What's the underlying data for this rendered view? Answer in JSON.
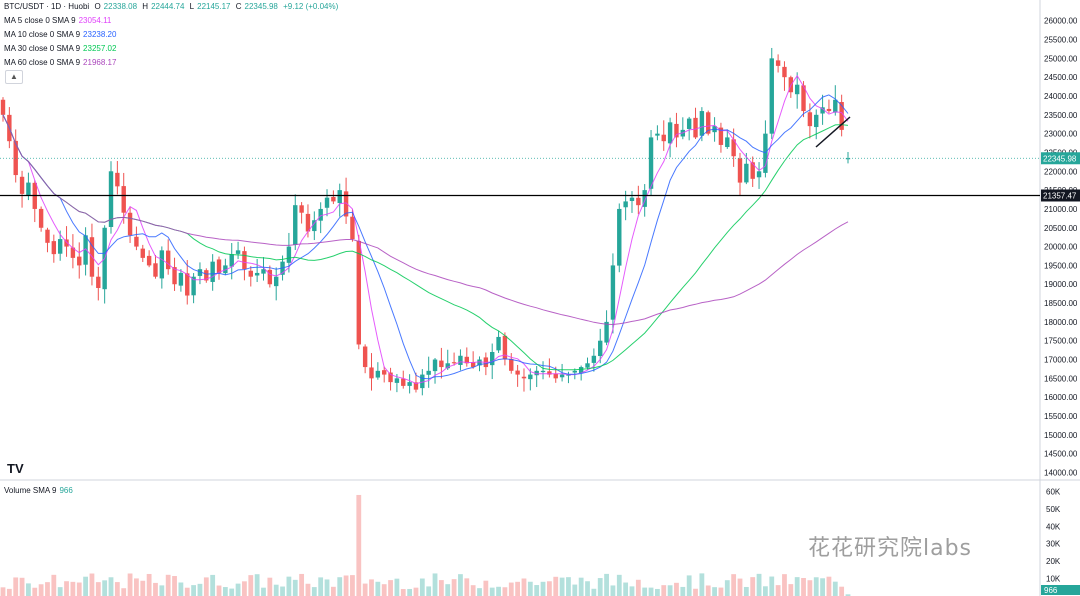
{
  "header": {
    "symbol": "BTC/USDT · 1D · Huobi",
    "ohlc": {
      "o_label": "O",
      "o": "22338.08",
      "h_label": "H",
      "h": "22444.74",
      "l_label": "L",
      "l": "22145.17",
      "c_label": "C",
      "c": "22345.98",
      "change": "+9.12 (+0.04%)"
    }
  },
  "indicators": [
    {
      "label": "MA 5 close 0 SMA 9",
      "value": "23054.11",
      "color": "#e040fb"
    },
    {
      "label": "MA 10 close 0 SMA 9",
      "value": "23238.20",
      "color": "#2962ff"
    },
    {
      "label": "MA 30 close 0 SMA 9",
      "value": "23257.02",
      "color": "#00c853"
    },
    {
      "label": "MA 60 close 0 SMA 9",
      "value": "21968.17",
      "color": "#ab47bc"
    }
  ],
  "volume": {
    "label": "Volume SMA 9",
    "value": "966"
  },
  "collapse_icon": "chevron-up-icon",
  "watermark": "花花研究院labs",
  "logo": "TV",
  "colors": {
    "up": "#26a69a",
    "down": "#ef5350",
    "ma5": "#e040fb",
    "ma10": "#2962ff",
    "ma30": "#00c853",
    "ma60": "#ab47bc",
    "hline": "#000000"
  },
  "chart_data": {
    "type": "candlestick",
    "price_axis_ticks": [
      "26000.00",
      "25500.00",
      "25000.00",
      "24500.00",
      "24000.00",
      "23500.00",
      "23000.00",
      "22500.00",
      "22000.00",
      "21500.00",
      "21000.00",
      "20500.00",
      "20000.00",
      "19500.00",
      "19000.00",
      "18500.00",
      "18000.00",
      "17500.00",
      "17000.00",
      "16500.00",
      "16000.00",
      "15500.00",
      "15000.00",
      "14500.00",
      "14000.00"
    ],
    "volume_axis_ticks": [
      "60K",
      "50K",
      "40K",
      "30K",
      "20K",
      "10K"
    ],
    "last_price": "22345.98",
    "horizontal_line_price": "21357.47",
    "volume_last": "966",
    "ylim": [
      14000,
      26000
    ],
    "closes": [
      23500,
      22800,
      21900,
      21400,
      21700,
      21000,
      20500,
      20100,
      19800,
      20200,
      20000,
      19700,
      19500,
      20300,
      19200,
      18900,
      20500,
      22000,
      21600,
      20900,
      20300,
      20000,
      19700,
      19500,
      19200,
      19900,
      19400,
      19000,
      19300,
      18700,
      19200,
      19400,
      19100,
      19600,
      19300,
      19500,
      19800,
      19900,
      19400,
      19200,
      19300,
      19400,
      19000,
      19200,
      19600,
      20000,
      21100,
      20900,
      20400,
      20700,
      21000,
      21300,
      21200,
      21500,
      20800,
      20200,
      17400,
      16800,
      16500,
      16700,
      16600,
      16400,
      16500,
      16300,
      16400,
      16200,
      16600,
      16700,
      17000,
      16800,
      16900,
      16900,
      17100,
      16900,
      16800,
      17000,
      16800,
      17200,
      17600,
      17000,
      16700,
      16600,
      16500,
      16600,
      16700,
      16700,
      16600,
      16500,
      16600,
      16600,
      16700,
      16800,
      16900,
      17100,
      17500,
      18000,
      19500,
      21000,
      21200,
      21300,
      21100,
      21500,
      22900,
      23000,
      22800,
      23300,
      22900,
      23100,
      23400,
      22900,
      23600,
      23000,
      23200,
      22700,
      22900,
      22400,
      21700,
      22200,
      21800,
      22000,
      23000,
      25000,
      24800,
      24500,
      24100,
      24300,
      23600,
      23200,
      23500,
      23700,
      23600,
      23900,
      23100,
      22346
    ],
    "volume_unit": "K"
  }
}
